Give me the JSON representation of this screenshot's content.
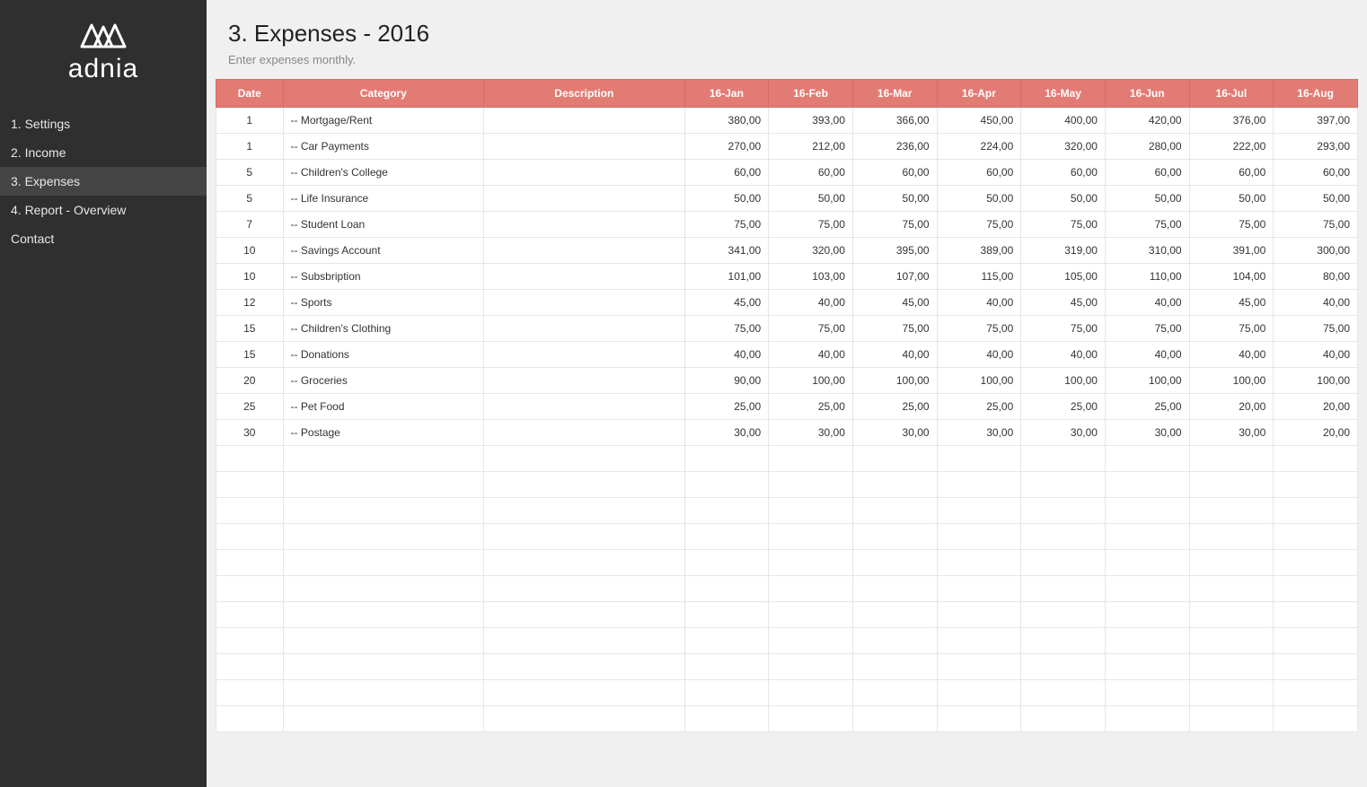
{
  "brand": {
    "name": "adnia"
  },
  "sidebar": {
    "items": [
      {
        "label": "1. Settings"
      },
      {
        "label": "2. Income"
      },
      {
        "label": "3. Expenses"
      },
      {
        "label": "4. Report - Overview"
      },
      {
        "label": "Contact"
      }
    ],
    "active_index": 2
  },
  "header": {
    "title": "3. Expenses - 2016",
    "subtitle": "Enter expenses monthly."
  },
  "table": {
    "header_bg": "#e27b74",
    "header_fg": "#ffffff",
    "border_color": "#e6e6e6",
    "columns": [
      "Date",
      "Category",
      "Description",
      "16-Jan",
      "16-Feb",
      "16-Mar",
      "16-Apr",
      "16-May",
      "16-Jun",
      "16-Jul",
      "16-Aug"
    ],
    "rows": [
      {
        "date": "1",
        "category": "-- Mortgage/Rent",
        "description": "",
        "values": [
          "380,00",
          "393,00",
          "366,00",
          "450,00",
          "400,00",
          "420,00",
          "376,00",
          "397,00"
        ]
      },
      {
        "date": "1",
        "category": "-- Car Payments",
        "description": "",
        "values": [
          "270,00",
          "212,00",
          "236,00",
          "224,00",
          "320,00",
          "280,00",
          "222,00",
          "293,00"
        ]
      },
      {
        "date": "5",
        "category": "-- Children's College",
        "description": "",
        "values": [
          "60,00",
          "60,00",
          "60,00",
          "60,00",
          "60,00",
          "60,00",
          "60,00",
          "60,00"
        ]
      },
      {
        "date": "5",
        "category": "-- Life Insurance",
        "description": "",
        "values": [
          "50,00",
          "50,00",
          "50,00",
          "50,00",
          "50,00",
          "50,00",
          "50,00",
          "50,00"
        ]
      },
      {
        "date": "7",
        "category": "-- Student Loan",
        "description": "",
        "values": [
          "75,00",
          "75,00",
          "75,00",
          "75,00",
          "75,00",
          "75,00",
          "75,00",
          "75,00"
        ]
      },
      {
        "date": "10",
        "category": "-- Savings Account",
        "description": "",
        "values": [
          "341,00",
          "320,00",
          "395,00",
          "389,00",
          "319,00",
          "310,00",
          "391,00",
          "300,00"
        ]
      },
      {
        "date": "10",
        "category": "-- Subsbription",
        "description": "",
        "values": [
          "101,00",
          "103,00",
          "107,00",
          "115,00",
          "105,00",
          "110,00",
          "104,00",
          "80,00"
        ]
      },
      {
        "date": "12",
        "category": "-- Sports",
        "description": "",
        "values": [
          "45,00",
          "40,00",
          "45,00",
          "40,00",
          "45,00",
          "40,00",
          "45,00",
          "40,00"
        ]
      },
      {
        "date": "15",
        "category": "-- Children's Clothing",
        "description": "",
        "values": [
          "75,00",
          "75,00",
          "75,00",
          "75,00",
          "75,00",
          "75,00",
          "75,00",
          "75,00"
        ]
      },
      {
        "date": "15",
        "category": "-- Donations",
        "description": "",
        "values": [
          "40,00",
          "40,00",
          "40,00",
          "40,00",
          "40,00",
          "40,00",
          "40,00",
          "40,00"
        ]
      },
      {
        "date": "20",
        "category": "-- Groceries",
        "description": "",
        "values": [
          "90,00",
          "100,00",
          "100,00",
          "100,00",
          "100,00",
          "100,00",
          "100,00",
          "100,00"
        ]
      },
      {
        "date": "25",
        "category": "-- Pet Food",
        "description": "",
        "values": [
          "25,00",
          "25,00",
          "25,00",
          "25,00",
          "25,00",
          "25,00",
          "20,00",
          "20,00"
        ]
      },
      {
        "date": "30",
        "category": "-- Postage",
        "description": "",
        "values": [
          "30,00",
          "30,00",
          "30,00",
          "30,00",
          "30,00",
          "30,00",
          "30,00",
          "20,00"
        ]
      }
    ],
    "empty_rows": 11
  }
}
